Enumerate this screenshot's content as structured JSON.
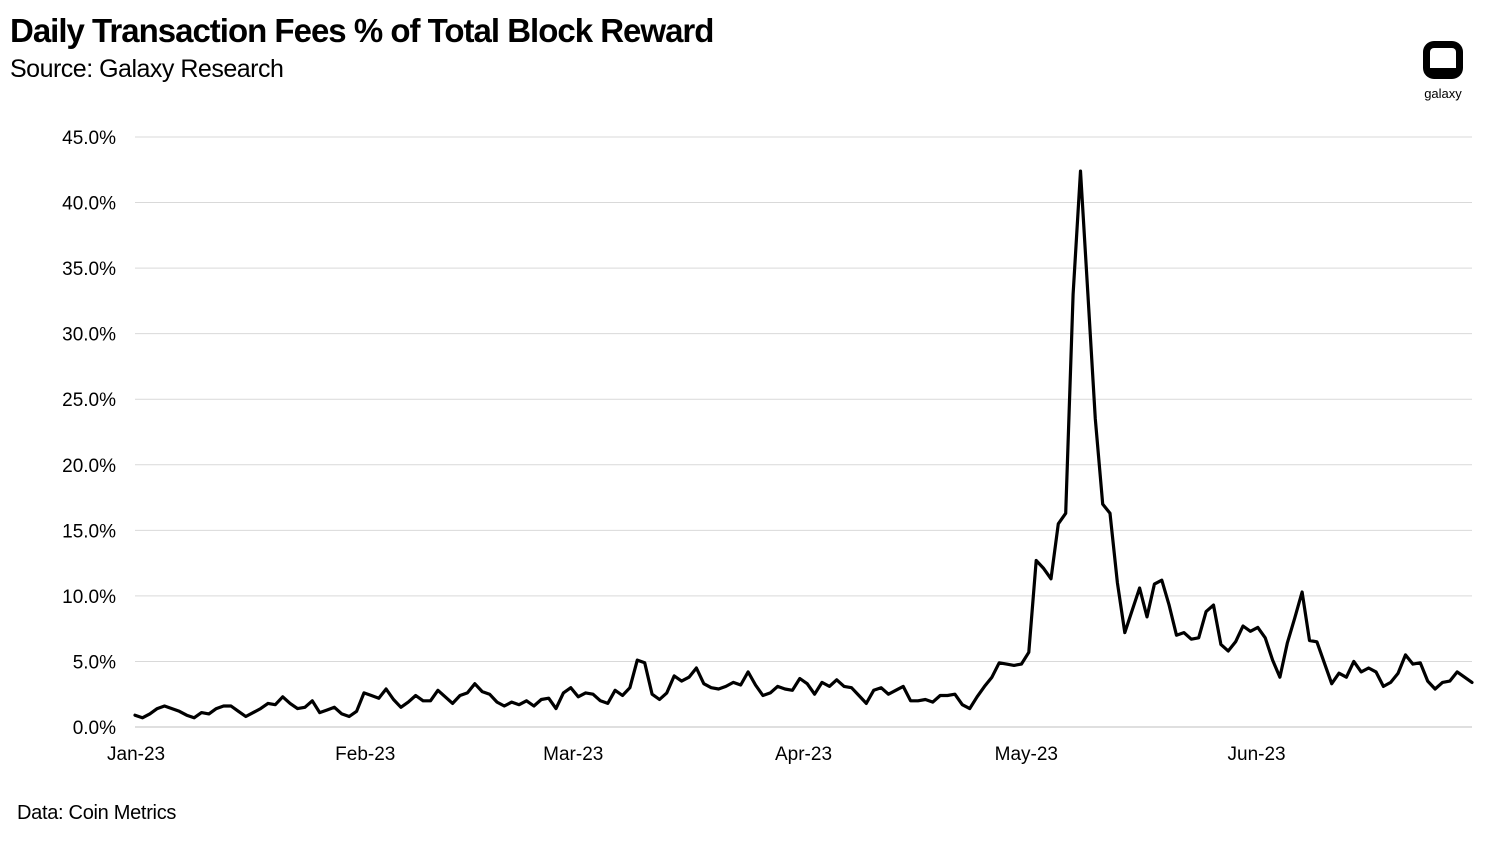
{
  "header": {
    "title": "Daily Transaction Fees % of Total Block Reward",
    "subtitle": "Source: Galaxy Research"
  },
  "footer": {
    "source_note": "Data: Coin Metrics"
  },
  "logo": {
    "icon": "galaxy-logo-icon",
    "label": "galaxy"
  },
  "colors": {
    "line": "#000000",
    "grid": "#d9d9d9",
    "axis": "#bfbfbf"
  },
  "chart_data": {
    "type": "line",
    "title": "Daily Transaction Fees % of Total Block Reward",
    "subtitle": "Source: Galaxy Research",
    "xlabel": "",
    "ylabel": "",
    "x_start": "2023-01-01",
    "x_end": "2023-06-30",
    "x_tick_labels": [
      "Jan-23",
      "Feb-23",
      "Mar-23",
      "Apr-23",
      "May-23",
      "Jun-23"
    ],
    "y_tick_labels": [
      "0.0%",
      "5.0%",
      "10.0%",
      "15.0%",
      "20.0%",
      "25.0%",
      "30.0%",
      "35.0%",
      "40.0%",
      "45.0%"
    ],
    "ylim": [
      0,
      45
    ],
    "grid": true,
    "legend": "none",
    "series": [
      {
        "name": "",
        "unit": "%",
        "values": [
          0.9,
          0.7,
          1.0,
          1.4,
          1.6,
          1.4,
          1.2,
          0.9,
          0.7,
          1.1,
          1.0,
          1.4,
          1.6,
          1.6,
          1.2,
          0.8,
          1.1,
          1.4,
          1.8,
          1.7,
          2.3,
          1.8,
          1.4,
          1.5,
          2.0,
          1.1,
          1.3,
          1.5,
          1.0,
          0.8,
          1.2,
          2.6,
          2.4,
          2.2,
          2.9,
          2.1,
          1.5,
          1.9,
          2.4,
          2.0,
          2.0,
          2.8,
          2.3,
          1.8,
          2.4,
          2.6,
          3.3,
          2.7,
          2.5,
          1.9,
          1.6,
          1.9,
          1.7,
          2.0,
          1.6,
          2.1,
          2.2,
          1.4,
          2.6,
          3.0,
          2.3,
          2.6,
          2.5,
          2.0,
          1.8,
          2.8,
          2.4,
          3.0,
          5.1,
          4.9,
          2.5,
          2.1,
          2.6,
          3.9,
          3.5,
          3.8,
          4.5,
          3.3,
          3.0,
          2.9,
          3.1,
          3.4,
          3.2,
          4.2,
          3.2,
          2.4,
          2.6,
          3.1,
          2.9,
          2.8,
          3.7,
          3.3,
          2.5,
          3.4,
          3.1,
          3.6,
          3.1,
          3.0,
          2.4,
          1.8,
          2.8,
          3.0,
          2.5,
          2.8,
          3.1,
          2.0,
          2.0,
          2.1,
          1.9,
          2.4,
          2.4,
          2.5,
          1.7,
          1.4,
          2.3,
          3.1,
          3.8,
          4.9,
          4.8,
          4.7,
          4.8,
          5.7,
          12.7,
          12.1,
          11.3,
          15.5,
          16.3,
          33.0,
          42.4,
          33.0,
          23.5,
          17.0,
          16.3,
          11.0,
          7.2,
          8.9,
          10.6,
          8.4,
          10.9,
          11.2,
          9.3,
          7.0,
          7.2,
          6.7,
          6.8,
          8.8,
          9.3,
          6.3,
          5.8,
          6.5,
          7.7,
          7.3,
          7.6,
          6.8,
          5.1,
          3.8,
          6.4,
          8.3,
          10.3,
          6.6,
          6.5,
          4.9,
          3.3,
          4.1,
          3.8,
          5.0,
          4.2,
          4.5,
          4.2,
          3.1,
          3.4,
          4.1,
          5.5,
          4.8,
          4.9,
          3.5,
          2.9,
          3.4,
          3.5,
          4.2,
          3.8,
          3.4
        ]
      }
    ]
  }
}
